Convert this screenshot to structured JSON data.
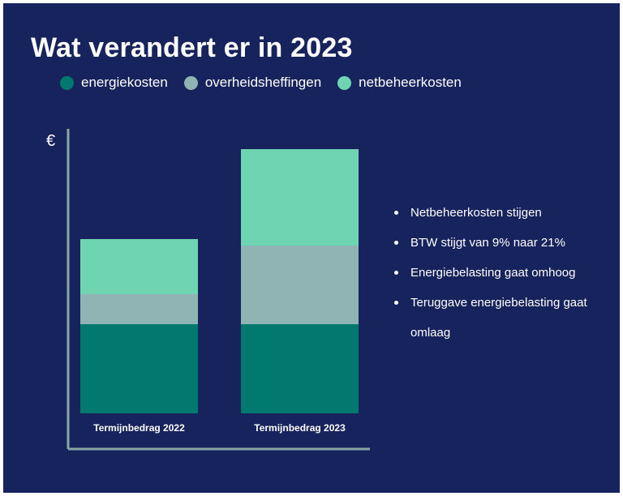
{
  "title": "Wat verandert er in 2023",
  "colors": {
    "background": "#17235c",
    "energiekosten": "#01796f",
    "overheidsheffingen": "#8fb4b3",
    "netbeheerkosten": "#6fd4b2",
    "axis": "#8aa7a6"
  },
  "chart_data": {
    "type": "bar",
    "stacked": true,
    "title": "Wat verandert er in 2023",
    "ylabel": "€",
    "categories": [
      "Termijnbedrag 2022",
      "Termijnbedrag 2023"
    ],
    "series": [
      {
        "name": "energiekosten",
        "values": [
          110,
          110
        ]
      },
      {
        "name": "overheidsheffingen",
        "values": [
          37,
          97
        ]
      },
      {
        "name": "netbeheerkosten",
        "values": [
          68,
          119
        ]
      }
    ],
    "ylim": [
      0,
      340
    ],
    "grid": false,
    "legend_position": "top"
  },
  "bullets": [
    "Netbeheerkosten stijgen",
    "BTW stijgt van 9% naar 21%",
    "Energiebelasting gaat omhoog",
    "Teruggave energiebelasting gaat omlaag"
  ]
}
